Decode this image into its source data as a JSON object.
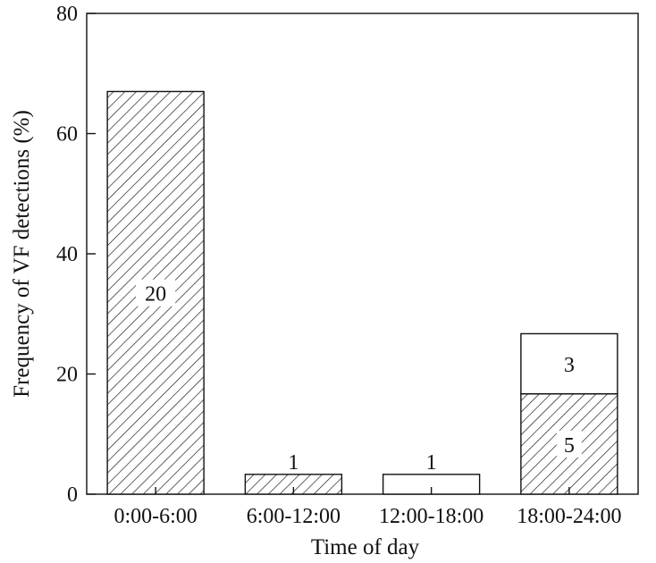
{
  "chart_data": {
    "type": "bar",
    "stacked": true,
    "xlabel": "Time of day",
    "ylabel": "Frequency of VF detections (%)",
    "ylim": [
      0,
      80
    ],
    "yticks": [
      0,
      20,
      40,
      60,
      80
    ],
    "grid": false,
    "categories": [
      "0:00-6:00",
      "6:00-12:00",
      "12:00-18:00",
      "18:00-24:00"
    ],
    "series": [
      {
        "pattern": "hatched",
        "values": [
          67,
          3.3,
          0,
          16.7
        ],
        "labels": [
          "20",
          "1",
          "",
          "5"
        ]
      },
      {
        "pattern": "open",
        "values": [
          0,
          0,
          3.3,
          10
        ],
        "labels": [
          "",
          "",
          "1",
          "3"
        ]
      }
    ]
  }
}
